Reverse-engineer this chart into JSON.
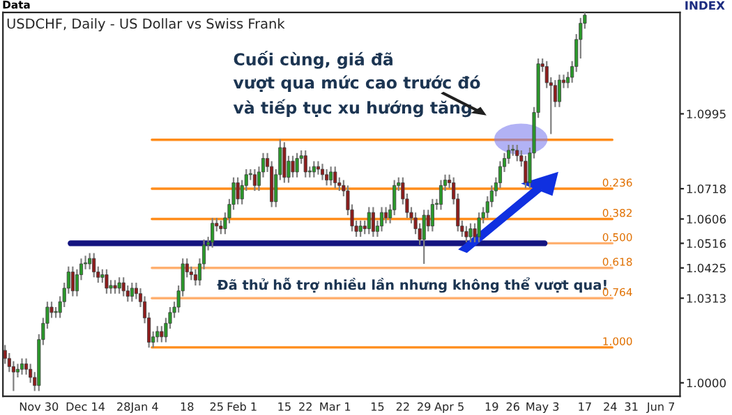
{
  "chart_data": {
    "type": "candlestick",
    "title": "USDCHF, Daily - US Dollar vs Swiss Frank",
    "annotations": [
      "Cuối cùng, giá đã\nvượt qua mức cao trước đó\nvà tiếp tục xu hướng tăng",
      "Đã thử hỗ trợ nhiều lần nhưng không thể vượt qua!",
      "Data",
      "INDEX",
      {
        "text": "0.236",
        "y": 1.0718
      },
      {
        "text": "0.382",
        "y": 1.0606
      },
      {
        "text": "0.500",
        "y": 1.0516
      },
      {
        "text": "0.618",
        "y": 1.0425
      },
      {
        "text": "0.764",
        "y": 1.0313
      },
      {
        "text": "1.000",
        "y": 1.0131
      }
    ],
    "categories": [
      null,
      null,
      null,
      null,
      null,
      null,
      null,
      null,
      "Nov 30",
      null,
      null,
      null,
      null,
      null,
      null,
      null,
      null,
      null,
      null,
      "Dec 14",
      null,
      null,
      null,
      null,
      null,
      null,
      null,
      null,
      "28",
      null,
      null,
      null,
      null,
      "Jan 4",
      null,
      null,
      null,
      null,
      null,
      null,
      null,
      null,
      null,
      "18",
      null,
      null,
      null,
      null,
      null,
      null,
      "25",
      null,
      null,
      null,
      null,
      null,
      "Feb 1",
      null,
      null,
      null,
      null,
      null,
      null,
      null,
      null,
      null,
      "15",
      null,
      null,
      null,
      null,
      "22",
      null,
      null,
      null,
      null,
      null,
      null,
      "Mar 1",
      null,
      null,
      null,
      null,
      null,
      null,
      null,
      null,
      null,
      "15",
      null,
      null,
      null,
      null,
      null,
      "22",
      null,
      null,
      null,
      null,
      "29",
      null,
      null,
      null,
      null,
      null,
      "Apr 5",
      null,
      null,
      null,
      null,
      null,
      null,
      null,
      null,
      null,
      "19",
      null,
      null,
      null,
      null,
      "26",
      null,
      null,
      null,
      null,
      null,
      null,
      "May 3",
      null,
      null,
      null,
      null,
      null,
      null,
      null,
      null,
      null,
      "17",
      null,
      null,
      null,
      null,
      null,
      "24",
      null,
      null,
      null,
      null,
      "31",
      null,
      null,
      null,
      null,
      null,
      null,
      "Jun 7",
      null,
      null,
      null,
      null
    ],
    "ohlc": [
      [
        1.012,
        1.014,
        1.007,
        1.009
      ],
      [
        1.009,
        1.011,
        1.004,
        1.006
      ],
      [
        1.006,
        1.008,
        0.997,
        1.004
      ],
      [
        1.004,
        1.007,
        1.002,
        1.005
      ],
      [
        1.005,
        1.009,
        1.003,
        1.007
      ],
      [
        1.007,
        1.009,
        1.003,
        1.005
      ],
      [
        1.005,
        1.007,
        1.0,
        1.002
      ],
      [
        1.002,
        1.004,
        0.997,
        0.999
      ],
      [
        0.999,
        1.018,
        0.997,
        1.016
      ],
      [
        1.016,
        1.024,
        1.014,
        1.022
      ],
      [
        1.022,
        1.03,
        1.02,
        1.028
      ],
      [
        1.028,
        1.03,
        1.024,
        1.026
      ],
      [
        1.026,
        1.028,
        1.024,
        1.026
      ],
      [
        1.026,
        1.032,
        1.024,
        1.03
      ],
      [
        1.03,
        1.037,
        1.028,
        1.035
      ],
      [
        1.035,
        1.043,
        1.033,
        1.041
      ],
      [
        1.041,
        1.043,
        1.032,
        1.034
      ],
      [
        1.034,
        1.042,
        1.032,
        1.04
      ],
      [
        1.04,
        1.046,
        1.038,
        1.044
      ],
      [
        1.044,
        1.047,
        1.042,
        1.044
      ],
      [
        1.044,
        1.048,
        1.042,
        1.046
      ],
      [
        1.046,
        1.048,
        1.039,
        1.041
      ],
      [
        1.041,
        1.043,
        1.037,
        1.039
      ],
      [
        1.039,
        1.042,
        1.037,
        1.04
      ],
      [
        1.04,
        1.042,
        1.033,
        1.035
      ],
      [
        1.035,
        1.038,
        1.033,
        1.036
      ],
      [
        1.036,
        1.038,
        1.033,
        1.035
      ],
      [
        1.035,
        1.039,
        1.033,
        1.037
      ],
      [
        1.037,
        1.039,
        1.032,
        1.034
      ],
      [
        1.034,
        1.036,
        1.03,
        1.032
      ],
      [
        1.032,
        1.037,
        1.03,
        1.035
      ],
      [
        1.035,
        1.037,
        1.031,
        1.033
      ],
      [
        1.033,
        1.035,
        1.028,
        1.03
      ],
      [
        1.03,
        1.032,
        1.022,
        1.024
      ],
      [
        1.024,
        1.026,
        1.013,
        1.015
      ],
      [
        1.015,
        1.019,
        1.013,
        1.017
      ],
      [
        1.017,
        1.021,
        1.015,
        1.019
      ],
      [
        1.019,
        1.021,
        1.015,
        1.017
      ],
      [
        1.017,
        1.024,
        1.015,
        1.022
      ],
      [
        1.022,
        1.028,
        1.02,
        1.026
      ],
      [
        1.026,
        1.03,
        1.024,
        1.028
      ],
      [
        1.028,
        1.036,
        1.026,
        1.034
      ],
      [
        1.034,
        1.046,
        1.032,
        1.044
      ],
      [
        1.044,
        1.046,
        1.039,
        1.041
      ],
      [
        1.041,
        1.043,
        1.038,
        1.04
      ],
      [
        1.04,
        1.042,
        1.036,
        1.038
      ],
      [
        1.038,
        1.046,
        1.036,
        1.044
      ],
      [
        1.044,
        1.053,
        1.042,
        1.051
      ],
      [
        1.051,
        1.054,
        1.049,
        1.052
      ],
      [
        1.052,
        1.061,
        1.05,
        1.059
      ],
      [
        1.059,
        1.061,
        1.056,
        1.058
      ],
      [
        1.058,
        1.06,
        1.055,
        1.057
      ],
      [
        1.057,
        1.063,
        1.055,
        1.061
      ],
      [
        1.061,
        1.068,
        1.059,
        1.066
      ],
      [
        1.066,
        1.076,
        1.064,
        1.074
      ],
      [
        1.074,
        1.076,
        1.066,
        1.068
      ],
      [
        1.068,
        1.075,
        1.066,
        1.073
      ],
      [
        1.073,
        1.079,
        1.071,
        1.077
      ],
      [
        1.077,
        1.079,
        1.075,
        1.077
      ],
      [
        1.077,
        1.079,
        1.071,
        1.073
      ],
      [
        1.073,
        1.08,
        1.071,
        1.078
      ],
      [
        1.078,
        1.085,
        1.076,
        1.083
      ],
      [
        1.083,
        1.085,
        1.078,
        1.08
      ],
      [
        1.08,
        1.082,
        1.065,
        1.067
      ],
      [
        1.067,
        1.079,
        1.065,
        1.077
      ],
      [
        1.077,
        1.09,
        1.075,
        1.087
      ],
      [
        1.087,
        1.089,
        1.074,
        1.076
      ],
      [
        1.076,
        1.084,
        1.074,
        1.082
      ],
      [
        1.082,
        1.084,
        1.076,
        1.078
      ],
      [
        1.078,
        1.085,
        1.076,
        1.083
      ],
      [
        1.083,
        1.086,
        1.081,
        1.084
      ],
      [
        1.084,
        1.086,
        1.076,
        1.078
      ],
      [
        1.078,
        1.08,
        1.076,
        1.078
      ],
      [
        1.078,
        1.082,
        1.076,
        1.08
      ],
      [
        1.08,
        1.082,
        1.077,
        1.079
      ],
      [
        1.079,
        1.081,
        1.075,
        1.077
      ],
      [
        1.077,
        1.079,
        1.073,
        1.075
      ],
      [
        1.075,
        1.08,
        1.073,
        1.078
      ],
      [
        1.078,
        1.08,
        1.072,
        1.074
      ],
      [
        1.074,
        1.076,
        1.071,
        1.073
      ],
      [
        1.073,
        1.075,
        1.069,
        1.071
      ],
      [
        1.071,
        1.073,
        1.062,
        1.064
      ],
      [
        1.064,
        1.066,
        1.056,
        1.058
      ],
      [
        1.058,
        1.06,
        1.054,
        1.056
      ],
      [
        1.056,
        1.06,
        1.054,
        1.058
      ],
      [
        1.058,
        1.06,
        1.055,
        1.057
      ],
      [
        1.057,
        1.065,
        1.055,
        1.063
      ],
      [
        1.063,
        1.065,
        1.054,
        1.056
      ],
      [
        1.056,
        1.06,
        1.054,
        1.058
      ],
      [
        1.058,
        1.065,
        1.056,
        1.063
      ],
      [
        1.063,
        1.065,
        1.059,
        1.061
      ],
      [
        1.061,
        1.066,
        1.059,
        1.064
      ],
      [
        1.064,
        1.075,
        1.062,
        1.073
      ],
      [
        1.073,
        1.076,
        1.071,
        1.074
      ],
      [
        1.074,
        1.076,
        1.066,
        1.068
      ],
      [
        1.068,
        1.07,
        1.061,
        1.063
      ],
      [
        1.063,
        1.065,
        1.059,
        1.061
      ],
      [
        1.061,
        1.063,
        1.055,
        1.057
      ],
      [
        1.057,
        1.059,
        1.051,
        1.053
      ],
      [
        1.053,
        1.064,
        1.044,
        1.062
      ],
      [
        1.062,
        1.064,
        1.056,
        1.058
      ],
      [
        1.058,
        1.068,
        1.056,
        1.066
      ],
      [
        1.066,
        1.068,
        1.064,
        1.066
      ],
      [
        1.066,
        1.075,
        1.064,
        1.073
      ],
      [
        1.073,
        1.077,
        1.071,
        1.075
      ],
      [
        1.075,
        1.077,
        1.072,
        1.074
      ],
      [
        1.074,
        1.076,
        1.066,
        1.068
      ],
      [
        1.068,
        1.07,
        1.056,
        1.058
      ],
      [
        1.058,
        1.06,
        1.054,
        1.056
      ],
      [
        1.056,
        1.058,
        1.052,
        1.054
      ],
      [
        1.054,
        1.059,
        1.052,
        1.057
      ],
      [
        1.057,
        1.059,
        1.052,
        1.054
      ],
      [
        1.054,
        1.063,
        1.052,
        1.061
      ],
      [
        1.061,
        1.065,
        1.059,
        1.063
      ],
      [
        1.063,
        1.069,
        1.061,
        1.067
      ],
      [
        1.067,
        1.073,
        1.065,
        1.071
      ],
      [
        1.071,
        1.076,
        1.069,
        1.074
      ],
      [
        1.074,
        1.082,
        1.072,
        1.08
      ],
      [
        1.08,
        1.085,
        1.078,
        1.083
      ],
      [
        1.083,
        1.088,
        1.081,
        1.086
      ],
      [
        1.086,
        1.088,
        1.084,
        1.086
      ],
      [
        1.086,
        1.088,
        1.082,
        1.084
      ],
      [
        1.084,
        1.086,
        1.08,
        1.082
      ],
      [
        1.082,
        1.084,
        1.072,
        1.074
      ],
      [
        1.074,
        1.087,
        1.072,
        1.085
      ],
      [
        1.085,
        1.102,
        1.083,
        1.1
      ],
      [
        1.1,
        1.12,
        1.098,
        1.118
      ],
      [
        1.118,
        1.12,
        1.115,
        1.117
      ],
      [
        1.117,
        1.119,
        1.109,
        1.111
      ],
      [
        1.111,
        1.113,
        1.092,
        1.11
      ],
      [
        1.11,
        1.112,
        1.102,
        1.104
      ],
      [
        1.104,
        1.114,
        1.102,
        1.112
      ],
      [
        1.112,
        1.114,
        1.109,
        1.111
      ],
      [
        1.111,
        1.115,
        1.109,
        1.113
      ],
      [
        1.113,
        1.119,
        1.111,
        1.117
      ],
      [
        1.117,
        1.129,
        1.115,
        1.127
      ],
      [
        1.127,
        1.135,
        1.12,
        1.133
      ],
      [
        1.133,
        1.137,
        1.131,
        1.136
      ],
      null,
      null,
      null,
      null,
      null,
      null,
      null,
      null,
      null,
      null,
      null,
      null,
      null,
      null,
      null,
      null,
      null,
      null,
      null,
      null,
      null,
      null
    ],
    "ylim": [
      0.995,
      1.137
    ],
    "yticks": [
      {
        "value": 1.0,
        "label": "1.0000"
      },
      1.0313,
      1.0425,
      1.0516,
      1.0606,
      1.0718,
      1.0995
    ],
    "ref_lines": [
      {
        "axis": "y",
        "value": 1.0899,
        "color": "#ff8c1a"
      },
      {
        "axis": "y",
        "value": 1.0718,
        "color": "#ff8c1a"
      },
      {
        "axis": "y",
        "value": 1.0606,
        "color": "#ff8c1a"
      },
      {
        "axis": "y",
        "value": 1.0516,
        "color": "#ffb070"
      },
      {
        "axis": "y",
        "value": 1.0425,
        "color": "#ffb070"
      },
      {
        "axis": "y",
        "value": 1.0313,
        "color": "#ffb070"
      },
      {
        "axis": "y",
        "value": 1.0131,
        "color": "#ff8c1a"
      },
      {
        "axis": "y",
        "value": 1.0516,
        "color": "#141480",
        "line_style": "solid"
      }
    ],
    "grid": false
  }
}
